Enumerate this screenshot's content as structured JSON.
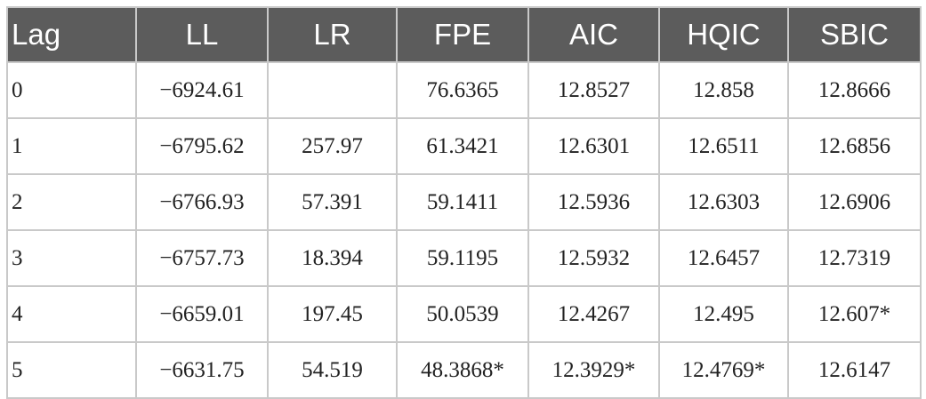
{
  "table": {
    "columns": [
      "Lag",
      "LL",
      "LR",
      "FPE",
      "AIC",
      "HQIC",
      "SBIC"
    ],
    "rows": [
      [
        "0",
        "−6924.61",
        null,
        "76.6365",
        "12.8527",
        "12.858",
        "12.8666"
      ],
      [
        "1",
        "−6795.62",
        "257.97",
        "61.3421",
        "12.6301",
        "12.6511",
        "12.6856"
      ],
      [
        "2",
        "−6766.93",
        "57.391",
        "59.1411",
        "12.5936",
        "12.6303",
        "12.6906"
      ],
      [
        "3",
        "−6757.73",
        "18.394",
        "59.1195",
        "12.5932",
        "12.6457",
        "12.7319"
      ],
      [
        "4",
        "−6659.01",
        "197.45",
        "50.0539",
        "12.4267",
        "12.495",
        "12.607*"
      ],
      [
        "5",
        "−6631.75",
        "54.519",
        "48.3868*",
        "12.3929*",
        "12.4769*",
        "12.6147"
      ]
    ]
  }
}
